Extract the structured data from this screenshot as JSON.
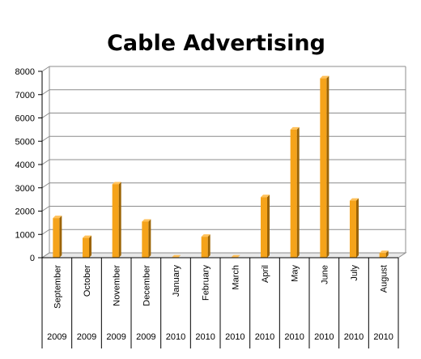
{
  "chart_data": {
    "type": "bar",
    "title": "Cable Advertising",
    "xlabel": "",
    "ylabel": "",
    "ylim": [
      0,
      8000
    ],
    "yticks": [
      0,
      1000,
      2000,
      3000,
      4000,
      5000,
      6000,
      7000,
      8000
    ],
    "grid": true,
    "legend": "none",
    "bar_color": "#f5a31a",
    "bar_shadow_color": "#9c6405",
    "categories": [
      {
        "month": "September",
        "year": "2009"
      },
      {
        "month": "October",
        "year": "2009"
      },
      {
        "month": "November",
        "year": "2009"
      },
      {
        "month": "December",
        "year": "2009"
      },
      {
        "month": "January",
        "year": "2010"
      },
      {
        "month": "February",
        "year": "2010"
      },
      {
        "month": "March",
        "year": "2010"
      },
      {
        "month": "April",
        "year": "2010"
      },
      {
        "month": "May",
        "year": "2010"
      },
      {
        "month": "June",
        "year": "2010"
      },
      {
        "month": "July",
        "year": "2010"
      },
      {
        "month": "August",
        "year": "2010"
      }
    ],
    "values": [
      1700,
      850,
      3150,
      1550,
      10,
      900,
      10,
      2600,
      5500,
      7700,
      2450,
      200
    ]
  }
}
